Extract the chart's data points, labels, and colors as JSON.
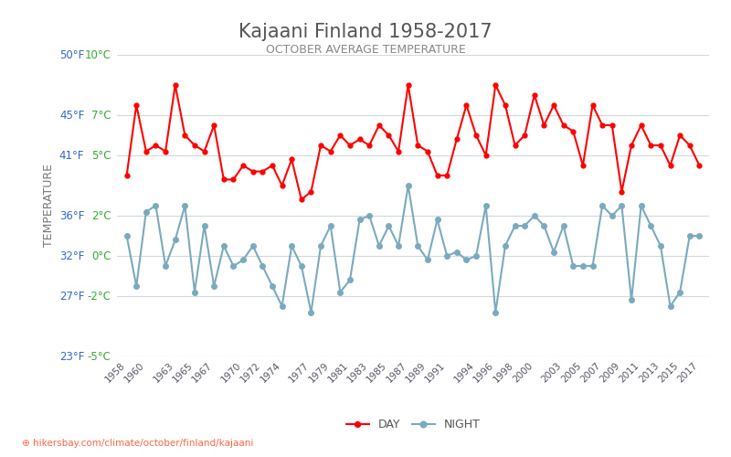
{
  "title": "Kajaani Finland 1958-2017",
  "subtitle": "OCTOBER AVERAGE TEMPERATURE",
  "ylabel": "TEMPERATURE",
  "footer": "hikersbay.com/climate/october/finland/kajaani",
  "years": [
    1958,
    1959,
    1960,
    1961,
    1962,
    1963,
    1964,
    1965,
    1966,
    1967,
    1968,
    1969,
    1970,
    1971,
    1972,
    1973,
    1974,
    1975,
    1976,
    1977,
    1978,
    1979,
    1980,
    1981,
    1982,
    1983,
    1984,
    1985,
    1986,
    1987,
    1988,
    1989,
    1990,
    1991,
    1992,
    1993,
    1994,
    1995,
    1996,
    1997,
    1998,
    1999,
    2000,
    2001,
    2002,
    2003,
    2004,
    2005,
    2006,
    2007,
    2008,
    2009,
    2010,
    2011,
    2012,
    2013,
    2014,
    2015,
    2016,
    2017
  ],
  "day_temps": [
    4.0,
    7.5,
    5.2,
    5.5,
    5.2,
    8.5,
    6.0,
    5.5,
    5.2,
    6.5,
    3.8,
    3.8,
    4.5,
    4.2,
    4.2,
    4.5,
    3.5,
    4.8,
    2.8,
    3.2,
    5.5,
    5.2,
    6.0,
    5.5,
    5.8,
    5.5,
    6.5,
    6.0,
    5.2,
    8.5,
    5.5,
    5.2,
    4.0,
    4.0,
    5.8,
    7.5,
    6.0,
    5.0,
    8.5,
    7.5,
    5.5,
    6.0,
    8.0,
    6.5,
    7.5,
    6.5,
    6.2,
    4.5,
    7.5,
    6.5,
    6.5,
    3.2,
    5.5,
    6.5,
    5.5,
    5.5,
    4.5,
    6.0,
    5.5,
    4.5
  ],
  "night_temps": [
    1.0,
    -1.5,
    2.2,
    2.5,
    -0.5,
    0.8,
    2.5,
    -1.8,
    1.5,
    -1.5,
    0.5,
    -0.5,
    -0.2,
    0.5,
    -0.5,
    -1.5,
    -2.5,
    0.5,
    -0.5,
    -2.8,
    0.5,
    1.5,
    -1.8,
    -1.2,
    1.8,
    2.0,
    0.5,
    1.5,
    0.5,
    3.5,
    0.5,
    -0.2,
    1.8,
    0.0,
    0.2,
    -0.2,
    0.0,
    2.5,
    -2.8,
    0.5,
    1.5,
    1.5,
    2.0,
    1.5,
    0.2,
    1.5,
    -0.5,
    -0.5,
    -0.5,
    2.5,
    2.0,
    2.5,
    -2.2,
    2.5,
    1.5,
    0.5,
    -2.5,
    -1.8,
    1.0,
    1.0
  ],
  "ylim_min": -5,
  "ylim_max": 10,
  "yticks_celsius": [
    -5,
    -2,
    0,
    2,
    5,
    7,
    10
  ],
  "yticks_fahrenheit": [
    23,
    27,
    32,
    36,
    41,
    45,
    50
  ],
  "day_color": "#ff0000",
  "night_color": "#7baabe",
  "grid_color": "#d0d8e0",
  "title_color": "#555555",
  "subtitle_color": "#888888",
  "ylabel_color": "#777777",
  "tick_label_color_celsius": "#33aa33",
  "tick_label_color_fahrenheit": "#3366cc",
  "background_color": "#ffffff",
  "footer_color": "#ff6644",
  "legend_night_label": "NIGHT",
  "legend_day_label": "DAY"
}
